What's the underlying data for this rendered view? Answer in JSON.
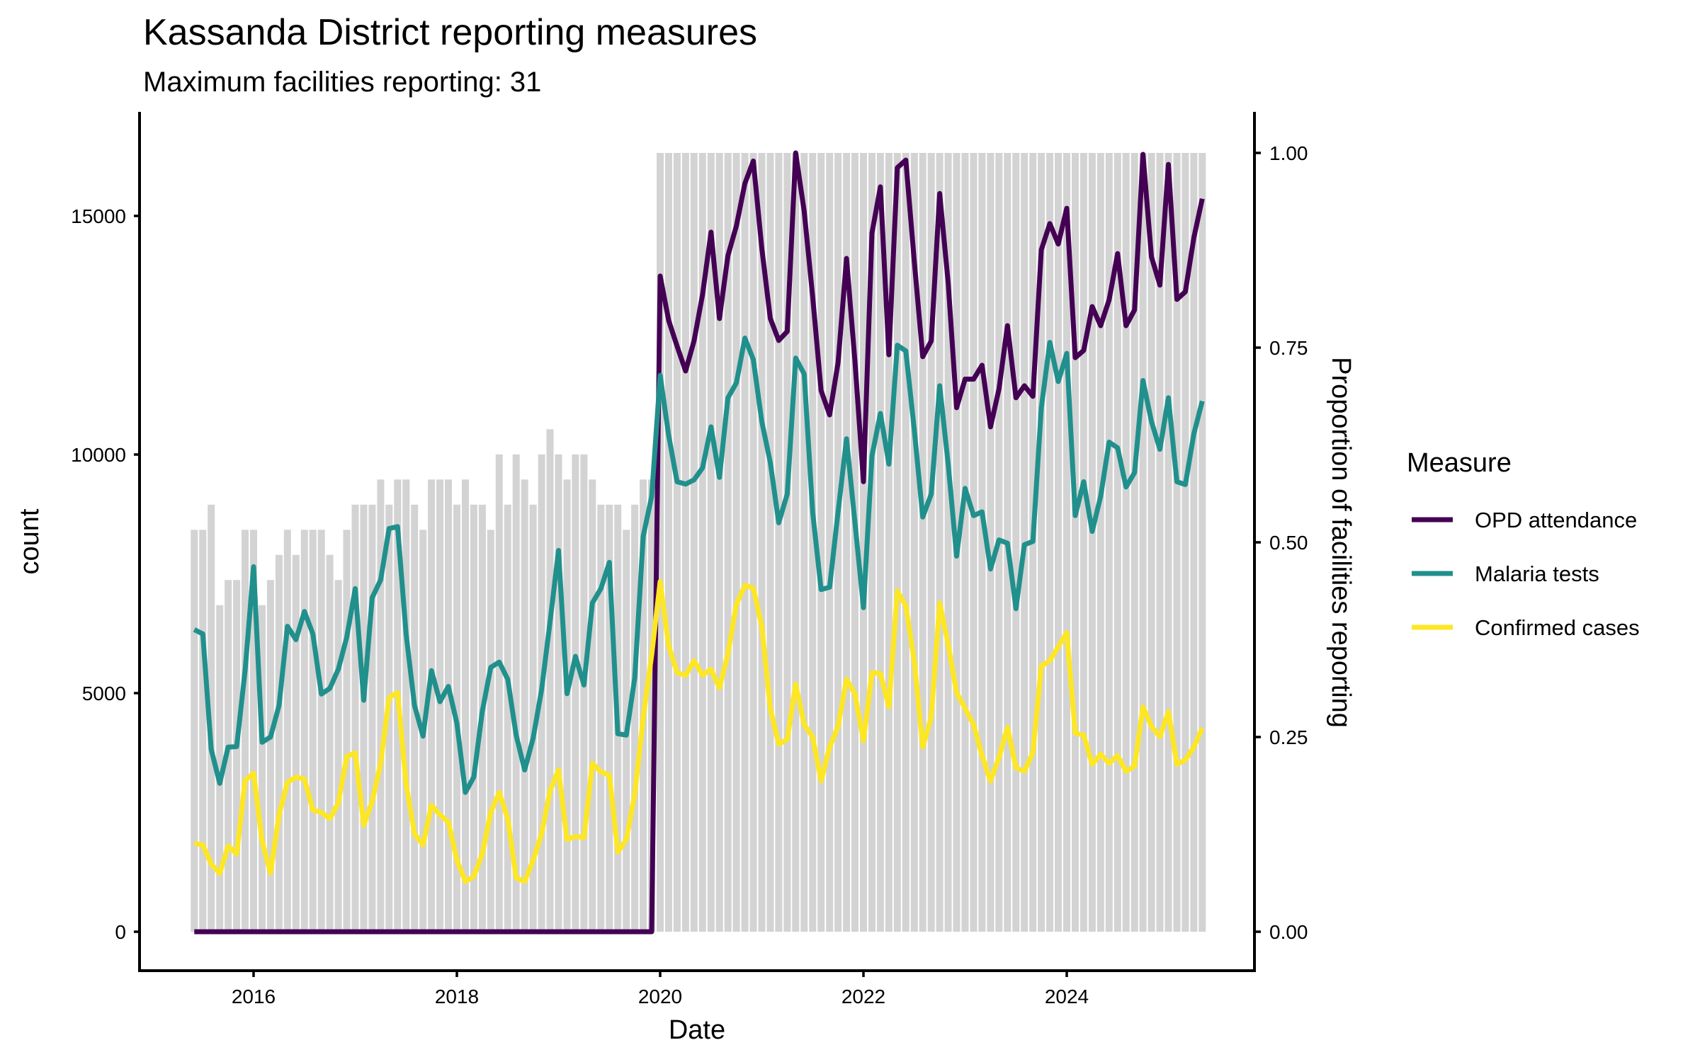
{
  "chart_data": {
    "type": "line",
    "title": "Kassanda District reporting measures",
    "subtitle": "Maximum facilities reporting: 31",
    "xlabel": "Date",
    "ylabel": "count",
    "y2label": "Proportion of facilities reporting",
    "x_ticks": [
      "2016",
      "2018",
      "2020",
      "2022",
      "2024"
    ],
    "y_ticks": [
      "0",
      "5000",
      "10000",
      "15000"
    ],
    "y2_ticks": [
      "0.00",
      "0.25",
      "0.50",
      "0.75",
      "1.00"
    ],
    "ylim": [
      0,
      16320
    ],
    "y2lim": [
      0,
      1
    ],
    "x_start": "2015-06",
    "x_end": "2025-05",
    "frequency": "monthly",
    "max_facilities": 31,
    "bar_color": "#d3d3d3",
    "legend": {
      "title": "Measure",
      "position": "right"
    },
    "facilities_reporting": [
      16,
      16,
      17,
      13,
      14,
      14,
      16,
      16,
      13,
      14,
      15,
      16,
      15,
      16,
      16,
      16,
      15,
      14,
      16,
      17,
      17,
      17,
      18,
      17,
      18,
      18,
      17,
      16,
      18,
      18,
      18,
      17,
      18,
      17,
      17,
      16,
      19,
      17,
      19,
      18,
      17,
      19,
      20,
      19,
      18,
      19,
      19,
      18,
      17,
      17,
      17,
      16,
      17,
      18,
      18,
      31,
      31,
      31,
      31,
      31,
      31,
      31,
      31,
      31,
      31,
      31,
      31,
      31,
      31,
      31,
      31,
      31,
      31,
      31,
      31,
      31,
      31,
      31,
      31,
      31,
      31,
      31,
      31,
      31,
      31,
      31,
      31,
      31,
      31,
      31,
      31,
      31,
      31,
      31,
      31,
      31,
      31,
      31,
      31,
      31,
      31,
      31,
      31,
      31,
      31,
      31,
      31,
      31,
      31,
      31,
      31,
      31,
      31,
      31,
      31,
      31,
      31,
      31,
      31,
      31
    ],
    "series": [
      {
        "name": "OPD attendance",
        "color": "#440154",
        "values": [
          0,
          0,
          0,
          0,
          0,
          0,
          0,
          0,
          0,
          0,
          0,
          0,
          0,
          0,
          0,
          0,
          0,
          0,
          0,
          0,
          0,
          0,
          0,
          0,
          0,
          0,
          0,
          0,
          0,
          0,
          0,
          0,
          0,
          0,
          0,
          0,
          0,
          0,
          0,
          0,
          0,
          0,
          0,
          0,
          0,
          0,
          0,
          0,
          0,
          0,
          0,
          0,
          0,
          0,
          0,
          13740,
          12810,
          12270,
          11750,
          12380,
          13350,
          14660,
          12850,
          14170,
          14790,
          15680,
          16150,
          14320,
          12850,
          12390,
          12580,
          16320,
          15100,
          13310,
          11340,
          10830,
          11920,
          14110,
          11950,
          9430,
          14640,
          15610,
          12090,
          16010,
          16170,
          14040,
          12050,
          12380,
          15470,
          13600,
          10980,
          11580,
          11580,
          11870,
          10580,
          11370,
          12700,
          11190,
          11440,
          11220,
          14290,
          14840,
          14410,
          15160,
          12030,
          12180,
          13100,
          12700,
          13240,
          14210,
          12700,
          13030,
          16290,
          14140,
          13550,
          16080,
          13250,
          13410,
          14540,
          15360
        ]
      },
      {
        "name": "Malaria tests",
        "color": "#21908c",
        "values": [
          6330,
          6240,
          3820,
          3110,
          3870,
          3880,
          5470,
          7650,
          3970,
          4080,
          4740,
          6400,
          6120,
          6710,
          6240,
          4980,
          5100,
          5500,
          6170,
          7190,
          4850,
          7000,
          7370,
          8450,
          8490,
          6240,
          4740,
          4100,
          5470,
          4820,
          5140,
          4370,
          2920,
          3240,
          4620,
          5540,
          5650,
          5290,
          4120,
          3390,
          4050,
          5070,
          6490,
          7990,
          4990,
          5770,
          5170,
          6890,
          7190,
          7740,
          4150,
          4120,
          5320,
          8290,
          9120,
          11660,
          10400,
          9430,
          9380,
          9470,
          9720,
          10580,
          9520,
          11190,
          11500,
          12440,
          11990,
          10690,
          9830,
          8570,
          9170,
          12020,
          11690,
          8790,
          7170,
          7220,
          8790,
          10330,
          8570,
          6790,
          9970,
          10860,
          9800,
          12290,
          12170,
          10510,
          8690,
          9170,
          11440,
          9800,
          7870,
          9290,
          8720,
          8800,
          7600,
          8210,
          8140,
          6770,
          8110,
          8180,
          10980,
          12350,
          11530,
          12120,
          8720,
          9430,
          8390,
          9120,
          10260,
          10140,
          9320,
          9620,
          11550,
          10690,
          10110,
          11190,
          9430,
          9370,
          10430,
          11120
        ]
      },
      {
        "name": "Confirmed cases",
        "color": "#fde725",
        "values": [
          1850,
          1820,
          1420,
          1220,
          1800,
          1630,
          3170,
          3320,
          1900,
          1230,
          2450,
          3130,
          3240,
          3200,
          2550,
          2500,
          2370,
          2700,
          3670,
          3750,
          2230,
          2730,
          3530,
          4910,
          5010,
          3100,
          2050,
          1820,
          2650,
          2450,
          2300,
          1500,
          1050,
          1160,
          1630,
          2500,
          2920,
          2370,
          1130,
          1050,
          1500,
          2050,
          2950,
          3390,
          1930,
          2000,
          1970,
          3530,
          3350,
          3280,
          1670,
          1930,
          2880,
          4490,
          5800,
          7340,
          5990,
          5430,
          5370,
          5680,
          5380,
          5500,
          5110,
          5830,
          6860,
          7260,
          7200,
          6400,
          4670,
          3930,
          4030,
          5190,
          4340,
          4080,
          3160,
          3870,
          4300,
          5290,
          4980,
          4000,
          5430,
          5410,
          4710,
          7140,
          6830,
          5660,
          3870,
          4510,
          6890,
          6020,
          5010,
          4680,
          4340,
          3690,
          3160,
          3650,
          4280,
          3440,
          3360,
          3760,
          5570,
          5680,
          5970,
          6270,
          4160,
          4120,
          3510,
          3720,
          3530,
          3690,
          3360,
          3470,
          4710,
          4300,
          4090,
          4610,
          3510,
          3600,
          3870,
          4270
        ]
      }
    ]
  }
}
